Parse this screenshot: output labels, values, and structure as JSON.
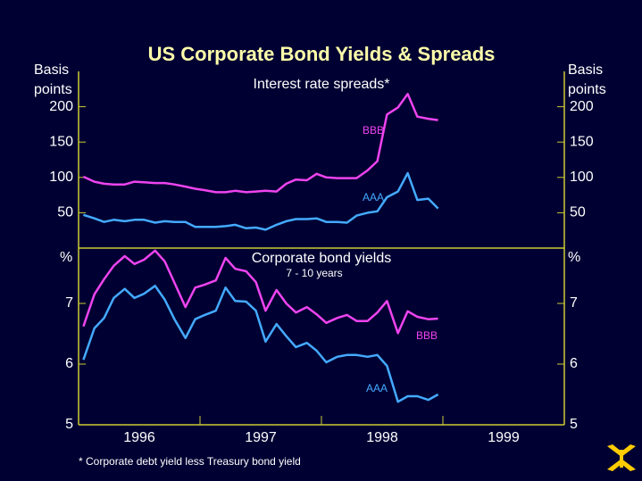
{
  "title": "US Corporate Bond Yields & Spreads",
  "footnote": "* Corporate debt yield less Treasury bond yield",
  "chart_data": [
    {
      "type": "line",
      "title": "Interest rate spreads*",
      "ylabel": "Basis points",
      "x": [
        1996.04,
        1996.13,
        1996.21,
        1996.29,
        1996.38,
        1996.46,
        1996.54,
        1996.63,
        1996.71,
        1996.79,
        1996.88,
        1996.96,
        1997.04,
        1997.13,
        1997.21,
        1997.29,
        1997.38,
        1997.46,
        1997.54,
        1997.63,
        1997.71,
        1997.79,
        1997.88,
        1997.96,
        1998.04,
        1998.13,
        1998.21,
        1998.29,
        1998.38,
        1998.46,
        1998.54,
        1998.63,
        1998.71,
        1998.79,
        1998.88,
        1998.96
      ],
      "xlim": [
        1996,
        2000
      ],
      "ylim": [
        0,
        250
      ],
      "yticks": [
        50,
        100,
        150,
        200
      ],
      "series": [
        {
          "name": "BBB",
          "color": "#ee44ee",
          "values": [
            101,
            94,
            91,
            90,
            90,
            94,
            93,
            92,
            92,
            90,
            87,
            84,
            82,
            79,
            79,
            81,
            79,
            80,
            81,
            80,
            91,
            97,
            96,
            105,
            100,
            99,
            99,
            99,
            110,
            123,
            189,
            199,
            218,
            186,
            183,
            181
          ]
        },
        {
          "name": "AAA",
          "color": "#44aaff",
          "values": [
            47,
            42,
            37,
            40,
            38,
            40,
            40,
            36,
            38,
            37,
            37,
            30,
            30,
            30,
            31,
            33,
            28,
            29,
            26,
            33,
            38,
            41,
            41,
            42,
            37,
            37,
            36,
            46,
            50,
            52,
            72,
            80,
            106,
            68,
            70,
            56
          ]
        }
      ]
    },
    {
      "type": "line",
      "title": "Corporate bond yields",
      "subtitle": "7 - 10 years",
      "ylabel": "%",
      "x": [
        1996.04,
        1996.13,
        1996.21,
        1996.29,
        1996.38,
        1996.46,
        1996.54,
        1996.63,
        1996.71,
        1996.79,
        1996.88,
        1996.96,
        1997.04,
        1997.13,
        1997.21,
        1997.29,
        1997.38,
        1997.46,
        1997.54,
        1997.63,
        1997.71,
        1997.79,
        1997.88,
        1997.96,
        1998.04,
        1998.13,
        1998.21,
        1998.29,
        1998.38,
        1998.46,
        1998.54,
        1998.63,
        1998.71,
        1998.79,
        1998.88,
        1998.96
      ],
      "xlim": [
        1996,
        2000
      ],
      "xticks": [
        {
          "value": 1996.5,
          "label": "1996"
        },
        {
          "value": 1997.5,
          "label": "1997"
        },
        {
          "value": 1998.5,
          "label": "1998"
        },
        {
          "value": 1999.5,
          "label": "1999"
        }
      ],
      "ylim": [
        5,
        8
      ],
      "yticks": [
        5,
        6,
        7
      ],
      "series": [
        {
          "name": "BBB",
          "color": "#ee44ee",
          "values": [
            6.62,
            7.15,
            7.4,
            7.62,
            7.78,
            7.65,
            7.72,
            7.87,
            7.69,
            7.34,
            6.94,
            7.26,
            7.31,
            7.38,
            7.75,
            7.57,
            7.53,
            7.35,
            6.88,
            7.22,
            7.0,
            6.85,
            6.94,
            6.82,
            6.68,
            6.76,
            6.81,
            6.71,
            6.71,
            6.85,
            7.04,
            6.51,
            6.87,
            6.78,
            6.74,
            6.75
          ]
        },
        {
          "name": "AAA",
          "color": "#44aaff",
          "values": [
            6.07,
            6.59,
            6.76,
            7.09,
            7.24,
            7.09,
            7.16,
            7.29,
            7.06,
            6.74,
            6.43,
            6.74,
            6.81,
            6.88,
            7.26,
            7.04,
            7.03,
            6.88,
            6.37,
            6.66,
            6.46,
            6.28,
            6.35,
            6.22,
            6.03,
            6.12,
            6.15,
            6.15,
            6.12,
            6.15,
            5.97,
            5.38,
            5.47,
            5.47,
            5.41,
            5.5
          ]
        }
      ]
    }
  ]
}
